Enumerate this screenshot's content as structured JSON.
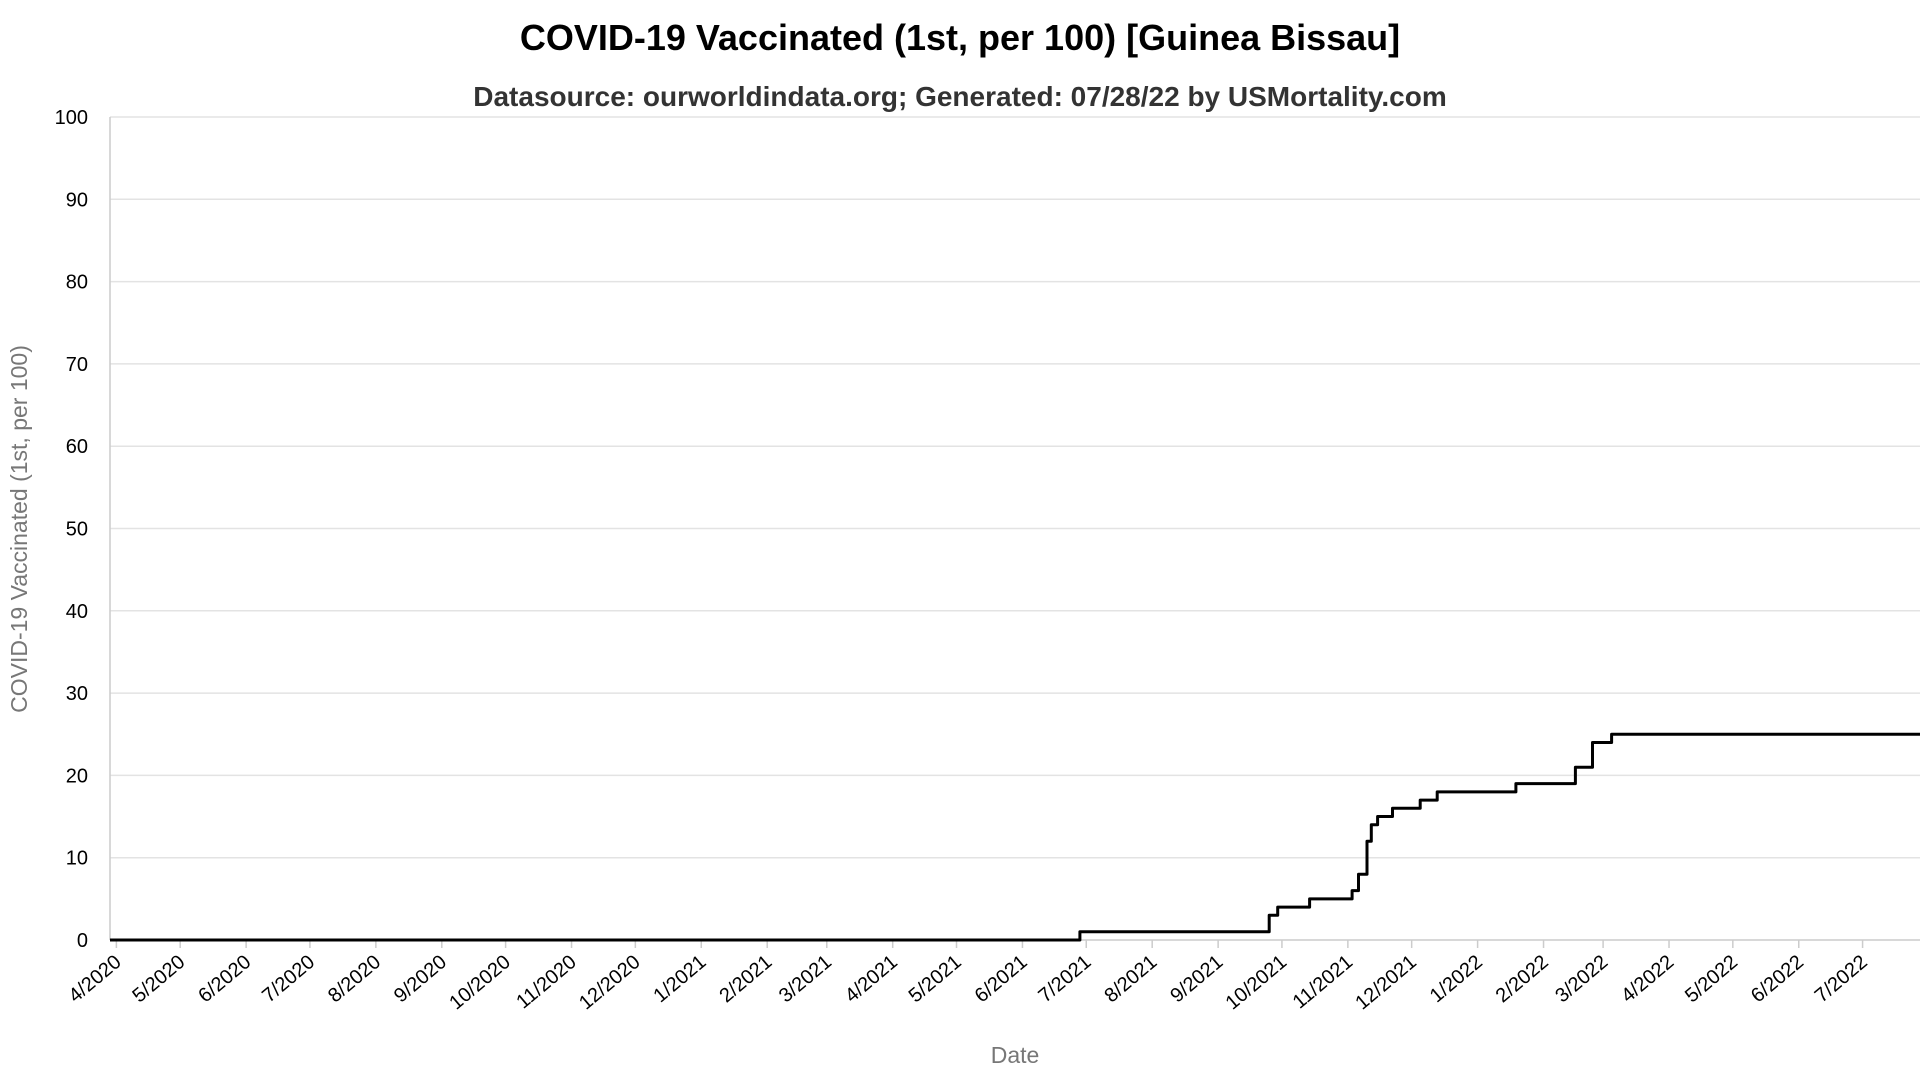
{
  "chart_data": {
    "type": "line",
    "title": "COVID-19 Vaccinated (1st, per 100) [Guinea Bissau]",
    "subtitle": "Datasource: ourworldindata.org; Generated: 07/28/22 by USMortality.com",
    "xlabel": "Date",
    "ylabel": "COVID-19 Vaccinated (1st, per 100)",
    "ylim": [
      0,
      100
    ],
    "xlim": [
      "2020-03-29",
      "2022-07-28"
    ],
    "y_ticks": [
      0,
      10,
      20,
      30,
      40,
      50,
      60,
      70,
      80,
      90,
      100
    ],
    "x_ticks": [
      {
        "date": "2020-04-01",
        "label": "4/2020"
      },
      {
        "date": "2020-05-01",
        "label": "5/2020"
      },
      {
        "date": "2020-06-01",
        "label": "6/2020"
      },
      {
        "date": "2020-07-01",
        "label": "7/2020"
      },
      {
        "date": "2020-08-01",
        "label": "8/2020"
      },
      {
        "date": "2020-09-01",
        "label": "9/2020"
      },
      {
        "date": "2020-10-01",
        "label": "10/2020"
      },
      {
        "date": "2020-11-01",
        "label": "11/2020"
      },
      {
        "date": "2020-12-01",
        "label": "12/2020"
      },
      {
        "date": "2021-01-01",
        "label": "1/2021"
      },
      {
        "date": "2021-02-01",
        "label": "2/2021"
      },
      {
        "date": "2021-03-01",
        "label": "3/2021"
      },
      {
        "date": "2021-04-01",
        "label": "4/2021"
      },
      {
        "date": "2021-05-01",
        "label": "5/2021"
      },
      {
        "date": "2021-06-01",
        "label": "6/2021"
      },
      {
        "date": "2021-07-01",
        "label": "7/2021"
      },
      {
        "date": "2021-08-01",
        "label": "8/2021"
      },
      {
        "date": "2021-09-01",
        "label": "9/2021"
      },
      {
        "date": "2021-10-01",
        "label": "10/2021"
      },
      {
        "date": "2021-11-01",
        "label": "11/2021"
      },
      {
        "date": "2021-12-01",
        "label": "12/2021"
      },
      {
        "date": "2022-01-01",
        "label": "1/2022"
      },
      {
        "date": "2022-02-01",
        "label": "2/2022"
      },
      {
        "date": "2022-03-01",
        "label": "3/2022"
      },
      {
        "date": "2022-04-01",
        "label": "4/2022"
      },
      {
        "date": "2022-05-01",
        "label": "5/2022"
      },
      {
        "date": "2022-06-01",
        "label": "6/2022"
      },
      {
        "date": "2022-07-01",
        "label": "7/2022"
      }
    ],
    "grid": true,
    "legend": "none",
    "series": [
      {
        "color": "#000000",
        "interpolation": "step-after",
        "points": [
          {
            "x": "2020-03-29",
            "y": 0
          },
          {
            "x": "2021-06-28",
            "y": 1
          },
          {
            "x": "2021-09-25",
            "y": 3
          },
          {
            "x": "2021-09-29",
            "y": 4
          },
          {
            "x": "2021-10-14",
            "y": 5
          },
          {
            "x": "2021-11-03",
            "y": 6
          },
          {
            "x": "2021-11-06",
            "y": 8
          },
          {
            "x": "2021-11-10",
            "y": 12
          },
          {
            "x": "2021-11-12",
            "y": 14
          },
          {
            "x": "2021-11-15",
            "y": 15
          },
          {
            "x": "2021-11-22",
            "y": 16
          },
          {
            "x": "2021-12-05",
            "y": 17
          },
          {
            "x": "2021-12-13",
            "y": 18
          },
          {
            "x": "2022-01-19",
            "y": 19
          },
          {
            "x": "2022-02-16",
            "y": 21
          },
          {
            "x": "2022-02-24",
            "y": 24
          },
          {
            "x": "2022-03-05",
            "y": 25
          },
          {
            "x": "2022-07-28",
            "y": 25
          }
        ]
      }
    ]
  }
}
